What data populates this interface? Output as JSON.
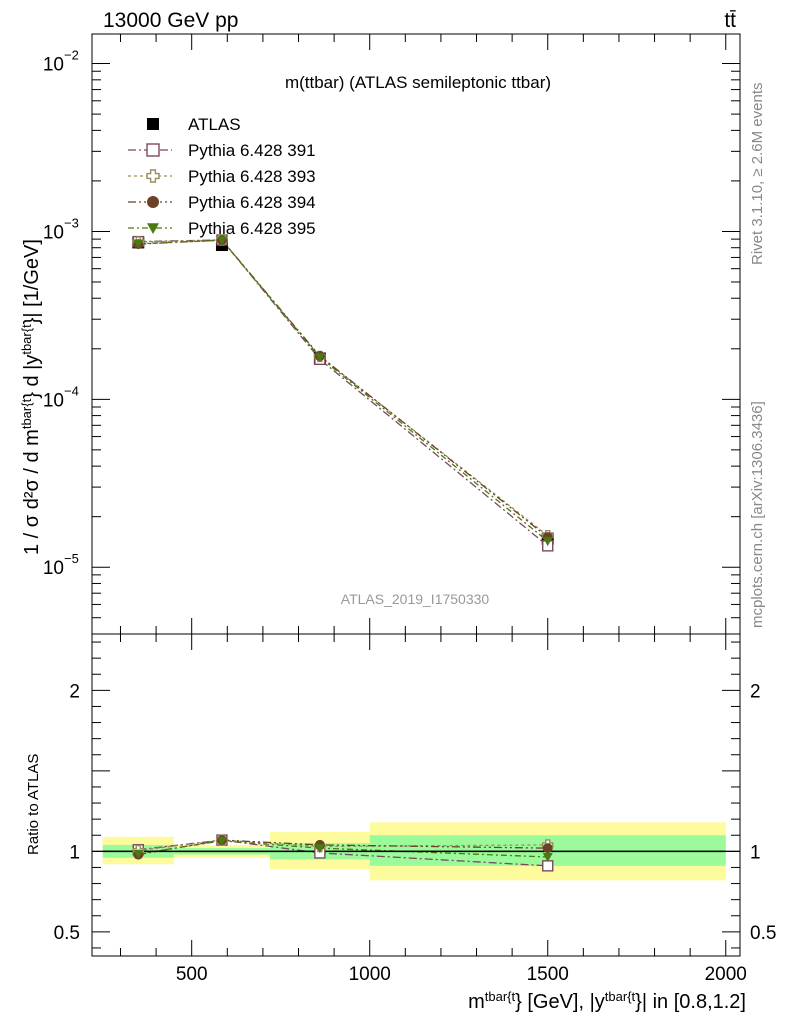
{
  "header": {
    "left": "13000 GeV pp",
    "right": "tt̄"
  },
  "side": {
    "rivet": "Rivet 3.1.10, ≥ 2.6M events",
    "mcplots": "mcplots.cern.ch [arXiv:1306.3436]"
  },
  "watermark": "ATLAS_2019_I1750330",
  "chart_data": {
    "type": "scatter",
    "title": "m(ttbar) (ATLAS semileptonic ttbar)",
    "ylabel_main": "1 / σ d²σ / d m^{tbar{t}} d |y^{tbar{t}}| [1/GeV]",
    "ylabel_ratio": "Ratio to ATLAS",
    "xlabel": "m^{tbar{t}} [GeV], |y^{tbar{t}}| in [0.8,1.2]",
    "y_scale": "log",
    "ylim": [
      4e-06,
      0.015
    ],
    "xlim": [
      220,
      2040
    ],
    "ratio_ylim": [
      0.35,
      2.35
    ],
    "x_ticks": [
      500,
      1000,
      1500,
      2000
    ],
    "y_ticks_main": [
      {
        "value": 1e-05,
        "label": "10",
        "exp": "−5"
      },
      {
        "value": 0.0001,
        "label": "10",
        "exp": "−4"
      },
      {
        "value": 0.001,
        "label": "10",
        "exp": "−3"
      },
      {
        "value": 0.01,
        "label": "10",
        "exp": "−2"
      }
    ],
    "y_ticks_ratio": [
      0.5,
      1,
      2
    ],
    "bins": [
      {
        "lo": 250,
        "hi": 450,
        "x": 350
      },
      {
        "lo": 450,
        "hi": 720,
        "x": 585
      },
      {
        "lo": 720,
        "hi": 1000,
        "x": 860
      },
      {
        "lo": 1000,
        "hi": 2000,
        "x": 1500
      }
    ],
    "data": {
      "name": "ATLAS",
      "values": [
        0.00086,
        0.00083,
        0.000175,
        1.48e-05
      ],
      "band_stat": [
        [
          0.96,
          1.04
        ],
        [
          0.98,
          1.02
        ],
        [
          0.95,
          1.05
        ],
        [
          0.91,
          1.1
        ]
      ],
      "band_total": [
        [
          0.92,
          1.09
        ],
        [
          0.96,
          1.04
        ],
        [
          0.89,
          1.12
        ],
        [
          0.82,
          1.18
        ]
      ]
    },
    "series": [
      {
        "name": "Pythia 6.428 391",
        "color": "#7a4a5e",
        "marker": "open-square",
        "values": [
          0.00087,
          0.00089,
          0.000173,
          1.34e-05
        ],
        "ratio": [
          1.01,
          1.07,
          0.99,
          0.91
        ]
      },
      {
        "name": "Pythia 6.428 393",
        "color": "#9a8e5a",
        "marker": "open-cross",
        "values": [
          0.000865,
          0.000888,
          0.00018,
          1.54e-05
        ],
        "ratio": [
          1.005,
          1.07,
          1.03,
          1.04
        ]
      },
      {
        "name": "Pythia 6.428 394",
        "color": "#6b4226",
        "marker": "filled-circle",
        "values": [
          0.00084,
          0.000888,
          0.000181,
          1.51e-05
        ],
        "ratio": [
          0.98,
          1.07,
          1.04,
          1.02
        ]
      },
      {
        "name": "Pythia 6.428 395",
        "color": "#4a7a10",
        "marker": "filled-triangle-down",
        "values": [
          0.000845,
          0.000885,
          0.000178,
          1.43e-05
        ],
        "ratio": [
          0.985,
          1.065,
          1.02,
          0.965
        ]
      }
    ]
  },
  "colors": {
    "band_stat": "#9bfb9b",
    "band_total": "#fdfb9b",
    "data": "#000000"
  }
}
